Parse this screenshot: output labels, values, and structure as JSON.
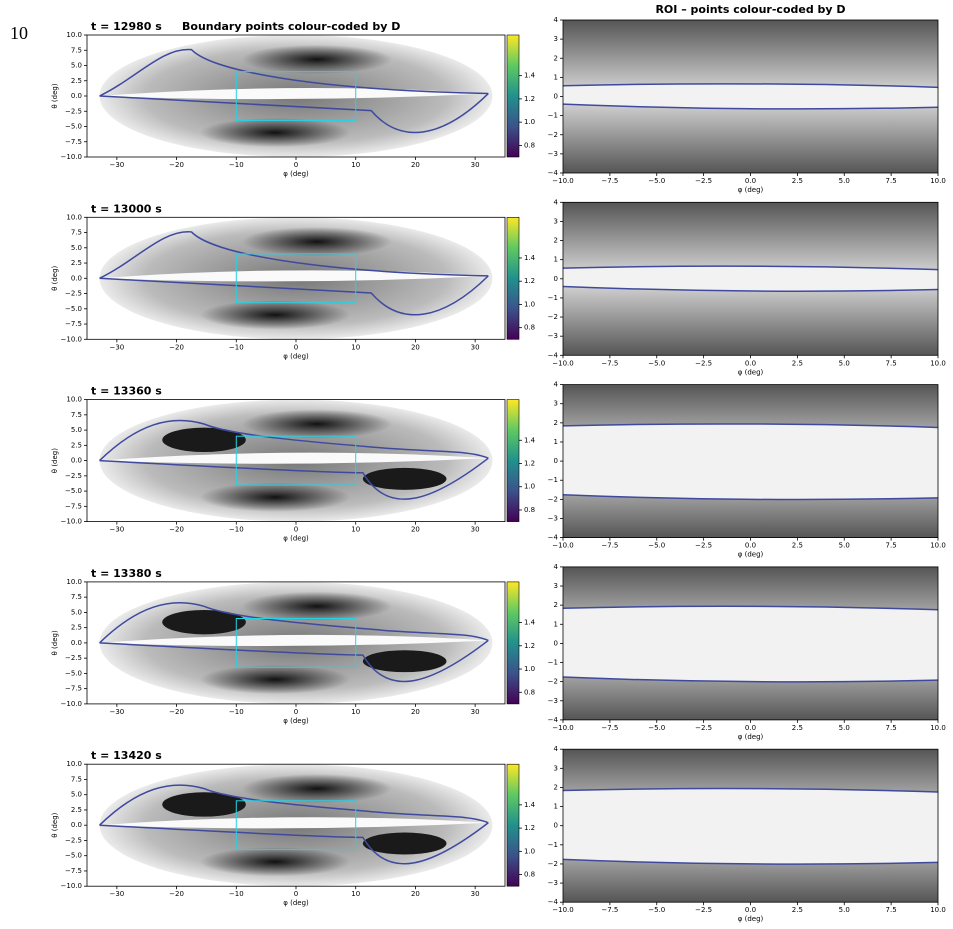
{
  "figure_label": "10",
  "chart_data": [
    {
      "type": "heatmap",
      "title": "t = 12980 s",
      "subtitle": "Boundary points colour-coded by D",
      "xlabel": "φ (deg)",
      "ylabel": "θ (deg)",
      "xlim": [
        -35,
        35
      ],
      "xticks": [
        {
          "value": -30,
          "label": "−30"
        },
        {
          "value": -20,
          "label": "−20"
        },
        {
          "value": -10,
          "label": "−10"
        },
        0,
        10,
        20,
        30
      ],
      "ylim": [
        -10,
        10
      ],
      "yticks": [
        {
          "value": -10,
          "label": "−10.0"
        },
        {
          "value": -7.5,
          "label": "−7.5"
        },
        {
          "value": -5,
          "label": "−5.0"
        },
        {
          "value": -2.5,
          "label": "−2.5"
        },
        {
          "value": 0,
          "label": "0.0"
        },
        2.5,
        {
          "value": 5,
          "label": "5.0"
        },
        7.5,
        {
          "value": 10,
          "label": "10.0"
        }
      ],
      "colorbar": {
        "ylim": [
          0.7,
          1.75
        ],
        "yticks": [
          0.8,
          {
            "value": 1,
            "label": "1.0"
          },
          1.2,
          1.4
        ],
        "colors": [
          "#440154",
          "#3b528b",
          "#21918c",
          "#5ec962",
          "#fde725"
        ]
      }
    },
    {
      "type": "heatmap",
      "title": "ROI – points colour-coded by D",
      "xlabel": "φ (deg)",
      "xlim": [
        -10,
        10
      ],
      "xticks": [
        {
          "value": -10,
          "label": "−10.0"
        },
        {
          "value": -7.5,
          "label": "−7.5"
        },
        {
          "value": -5,
          "label": "−5.0"
        },
        {
          "value": -2.5,
          "label": "−2.5"
        },
        {
          "value": 0,
          "label": "0.0"
        },
        2.5,
        {
          "value": 5,
          "label": "5.0"
        },
        7.5,
        {
          "value": 10,
          "label": "10.0"
        }
      ],
      "ylim": [
        -4,
        4
      ],
      "yticks": [
        {
          "value": -4,
          "label": "−4"
        },
        {
          "value": -3,
          "label": "−3"
        },
        {
          "value": -2,
          "label": "−2"
        },
        {
          "value": -1,
          "label": "−1"
        },
        0,
        1,
        2,
        3,
        4
      ]
    },
    {
      "type": "heatmap",
      "title": "t = 13000 s",
      "xlabel": "φ (deg)",
      "ylabel": "θ (deg)",
      "xlim": [
        -35,
        35
      ],
      "xticks": [
        {
          "value": -30,
          "label": "−30"
        },
        {
          "value": -20,
          "label": "−20"
        },
        {
          "value": -10,
          "label": "−10"
        },
        0,
        10,
        20,
        30
      ],
      "ylim": [
        -10,
        10
      ],
      "yticks": [
        {
          "value": -10,
          "label": "−10.0"
        },
        {
          "value": -7.5,
          "label": "−7.5"
        },
        {
          "value": -5,
          "label": "−5.0"
        },
        {
          "value": -2.5,
          "label": "−2.5"
        },
        {
          "value": 0,
          "label": "0.0"
        },
        2.5,
        {
          "value": 5,
          "label": "5.0"
        },
        7.5,
        {
          "value": 10,
          "label": "10.0"
        }
      ],
      "colorbar": {
        "ylim": [
          0.7,
          1.75
        ],
        "yticks": [
          0.8,
          {
            "value": 1,
            "label": "1.0"
          },
          1.2,
          1.4
        ],
        "colors": [
          "#440154",
          "#3b528b",
          "#21918c",
          "#5ec962",
          "#fde725"
        ]
      }
    },
    {
      "type": "heatmap",
      "xlabel": "φ (deg)",
      "xlim": [
        -10,
        10
      ],
      "xticks": [
        {
          "value": -10,
          "label": "−10.0"
        },
        {
          "value": -7.5,
          "label": "−7.5"
        },
        {
          "value": -5,
          "label": "−5.0"
        },
        {
          "value": -2.5,
          "label": "−2.5"
        },
        {
          "value": 0,
          "label": "0.0"
        },
        2.5,
        {
          "value": 5,
          "label": "5.0"
        },
        7.5,
        {
          "value": 10,
          "label": "10.0"
        }
      ],
      "ylim": [
        -4,
        4
      ],
      "yticks": [
        {
          "value": -4,
          "label": "−4"
        },
        {
          "value": -3,
          "label": "−3"
        },
        {
          "value": -2,
          "label": "−2"
        },
        {
          "value": -1,
          "label": "−1"
        },
        0,
        1,
        2,
        3,
        4
      ]
    },
    {
      "type": "heatmap",
      "title": "t = 13360 s",
      "xlabel": "φ (deg)",
      "ylabel": "θ (deg)",
      "xlim": [
        -35,
        35
      ],
      "xticks": [
        {
          "value": -30,
          "label": "−30"
        },
        {
          "value": -20,
          "label": "−20"
        },
        {
          "value": -10,
          "label": "−10"
        },
        0,
        10,
        20,
        30
      ],
      "ylim": [
        -10,
        10
      ],
      "yticks": [
        {
          "value": -10,
          "label": "−10.0"
        },
        {
          "value": -7.5,
          "label": "−7.5"
        },
        {
          "value": -5,
          "label": "−5.0"
        },
        {
          "value": -2.5,
          "label": "−2.5"
        },
        {
          "value": 0,
          "label": "0.0"
        },
        2.5,
        {
          "value": 5,
          "label": "5.0"
        },
        7.5,
        {
          "value": 10,
          "label": "10.0"
        }
      ],
      "colorbar": {
        "ylim": [
          0.7,
          1.75
        ],
        "yticks": [
          0.8,
          {
            "value": 1,
            "label": "1.0"
          },
          1.2,
          1.4
        ],
        "colors": [
          "#440154",
          "#3b528b",
          "#21918c",
          "#5ec962",
          "#fde725"
        ]
      }
    },
    {
      "type": "heatmap",
      "xlabel": "φ (deg)",
      "xlim": [
        -10,
        10
      ],
      "xticks": [
        {
          "value": -10,
          "label": "−10.0"
        },
        {
          "value": -7.5,
          "label": "−7.5"
        },
        {
          "value": -5,
          "label": "−5.0"
        },
        {
          "value": -2.5,
          "label": "−2.5"
        },
        {
          "value": 0,
          "label": "0.0"
        },
        2.5,
        {
          "value": 5,
          "label": "5.0"
        },
        7.5,
        {
          "value": 10,
          "label": "10.0"
        }
      ],
      "ylim": [
        -4,
        4
      ],
      "yticks": [
        {
          "value": -4,
          "label": "−4"
        },
        {
          "value": -3,
          "label": "−3"
        },
        {
          "value": -2,
          "label": "−2"
        },
        {
          "value": -1,
          "label": "−1"
        },
        0,
        1,
        2,
        3,
        4
      ]
    },
    {
      "type": "heatmap",
      "title": "t = 13380 s",
      "xlabel": "φ (deg)",
      "ylabel": "θ (deg)",
      "xlim": [
        -35,
        35
      ],
      "xticks": [
        {
          "value": -30,
          "label": "−30"
        },
        {
          "value": -20,
          "label": "−20"
        },
        {
          "value": -10,
          "label": "−10"
        },
        0,
        10,
        20,
        30
      ],
      "ylim": [
        -10,
        10
      ],
      "yticks": [
        {
          "value": -10,
          "label": "−10.0"
        },
        {
          "value": -7.5,
          "label": "−7.5"
        },
        {
          "value": -5,
          "label": "−5.0"
        },
        {
          "value": -2.5,
          "label": "−2.5"
        },
        {
          "value": 0,
          "label": "0.0"
        },
        2.5,
        {
          "value": 5,
          "label": "5.0"
        },
        7.5,
        {
          "value": 10,
          "label": "10.0"
        }
      ],
      "colorbar": {
        "ylim": [
          0.7,
          1.75
        ],
        "yticks": [
          0.8,
          {
            "value": 1,
            "label": "1.0"
          },
          1.2,
          1.4
        ],
        "colors": [
          "#440154",
          "#3b528b",
          "#21918c",
          "#5ec962",
          "#fde725"
        ]
      }
    },
    {
      "type": "heatmap",
      "xlabel": "φ (deg)",
      "xlim": [
        -10,
        10
      ],
      "xticks": [
        {
          "value": -10,
          "label": "−10.0"
        },
        {
          "value": -7.5,
          "label": "−7.5"
        },
        {
          "value": -5,
          "label": "−5.0"
        },
        {
          "value": -2.5,
          "label": "−2.5"
        },
        {
          "value": 0,
          "label": "0.0"
        },
        2.5,
        {
          "value": 5,
          "label": "5.0"
        },
        7.5,
        {
          "value": 10,
          "label": "10.0"
        }
      ],
      "ylim": [
        -4,
        4
      ],
      "yticks": [
        {
          "value": -4,
          "label": "−4"
        },
        {
          "value": -3,
          "label": "−3"
        },
        {
          "value": -2,
          "label": "−2"
        },
        {
          "value": -1,
          "label": "−1"
        },
        0,
        1,
        2,
        3,
        4
      ]
    },
    {
      "type": "heatmap",
      "title": "t = 13420 s",
      "xlabel": "φ (deg)",
      "ylabel": "θ (deg)",
      "xlim": [
        -35,
        35
      ],
      "xticks": [
        {
          "value": -30,
          "label": "−30"
        },
        {
          "value": -20,
          "label": "−20"
        },
        {
          "value": -10,
          "label": "−10"
        },
        0,
        10,
        20,
        30
      ],
      "ylim": [
        -10,
        10
      ],
      "yticks": [
        {
          "value": -10,
          "label": "−10.0"
        },
        {
          "value": -7.5,
          "label": "−7.5"
        },
        {
          "value": -5,
          "label": "−5.0"
        },
        {
          "value": -2.5,
          "label": "−2.5"
        },
        {
          "value": 0,
          "label": "0.0"
        },
        2.5,
        {
          "value": 5,
          "label": "5.0"
        },
        7.5,
        {
          "value": 10,
          "label": "10.0"
        }
      ],
      "colorbar": {
        "ylim": [
          0.7,
          1.75
        ],
        "yticks": [
          0.8,
          {
            "value": 1,
            "label": "1.0"
          },
          1.2,
          1.4
        ],
        "colors": [
          "#440154",
          "#3b528b",
          "#21918c",
          "#5ec962",
          "#fde725"
        ]
      }
    },
    {
      "type": "heatmap",
      "xlabel": "φ (deg)",
      "xlim": [
        -10,
        10
      ],
      "xticks": [
        {
          "value": -10,
          "label": "−10.0"
        },
        {
          "value": -7.5,
          "label": "−7.5"
        },
        {
          "value": -5,
          "label": "−5.0"
        },
        {
          "value": -2.5,
          "label": "−2.5"
        },
        {
          "value": 0,
          "label": "0.0"
        },
        2.5,
        {
          "value": 5,
          "label": "5.0"
        },
        7.5,
        {
          "value": 10,
          "label": "10.0"
        }
      ],
      "ylim": [
        -4,
        4
      ],
      "yticks": [
        {
          "value": -4,
          "label": "−4"
        },
        {
          "value": -3,
          "label": "−3"
        },
        {
          "value": -2,
          "label": "−2"
        },
        {
          "value": -1,
          "label": "−1"
        },
        0,
        1,
        2,
        3,
        4
      ]
    }
  ]
}
